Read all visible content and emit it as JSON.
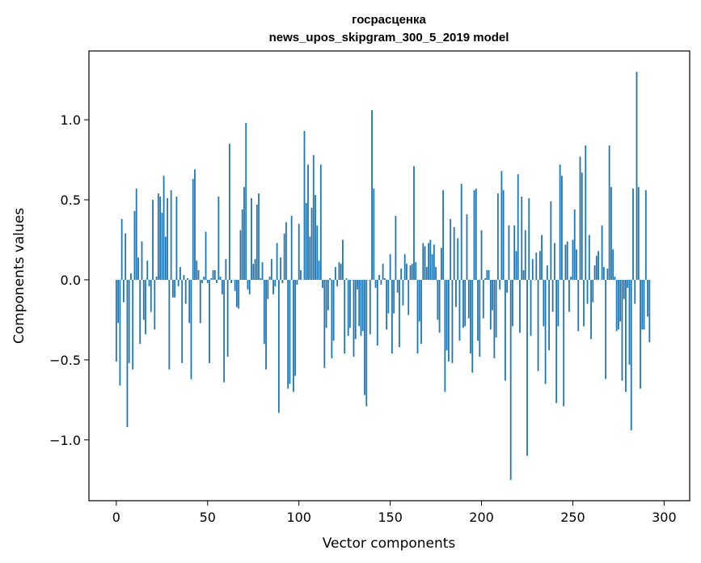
{
  "chart_data": {
    "type": "bar",
    "title": "госрасценка",
    "subtitle": "news_upos_skipgram_300_5_2019 model",
    "xlabel": "Vector components",
    "ylabel": "Components values",
    "xlim": [
      -15,
      314
    ],
    "ylim": [
      -1.38,
      1.43
    ],
    "xticks": [
      0,
      50,
      100,
      150,
      200,
      250,
      300
    ],
    "yticks": [
      -1.0,
      -0.5,
      0.0,
      0.5,
      1.0
    ],
    "ytick_labels": [
      "−1.0",
      "−0.5",
      "0.0",
      "0.5",
      "1.0"
    ],
    "grid": false,
    "color": "#1f77b4",
    "values": [
      -0.51,
      -0.27,
      -0.66,
      0.38,
      -0.14,
      0.29,
      -0.92,
      -0.52,
      0.04,
      -0.56,
      0.43,
      0.57,
      0.14,
      -0.4,
      0.24,
      -0.25,
      -0.34,
      0.12,
      -0.04,
      -0.2,
      0.5,
      -0.31,
      0.02,
      0.54,
      0.52,
      0.42,
      0.65,
      0.27,
      0.51,
      -0.56,
      0.56,
      -0.11,
      -0.11,
      0.52,
      -0.04,
      0.08,
      -0.52,
      0.03,
      -0.15,
      0.01,
      -0.27,
      -0.62,
      0.63,
      0.69,
      0.12,
      0.06,
      -0.27,
      -0.02,
      0.02,
      0.3,
      -0.02,
      -0.52,
      0.01,
      0.06,
      0.06,
      -0.02,
      0.52,
      0.02,
      -0.09,
      -0.64,
      0.13,
      -0.48,
      0.85,
      -0.02,
      0.0,
      -0.07,
      -0.17,
      -0.18,
      0.31,
      0.44,
      0.58,
      0.98,
      -0.06,
      -0.09,
      0.51,
      0.1,
      0.13,
      0.47,
      0.54,
      0.01,
      0.11,
      -0.4,
      -0.56,
      -0.12,
      0.02,
      0.13,
      -0.09,
      -0.04,
      0.23,
      -0.83,
      0.14,
      -0.02,
      0.29,
      0.36,
      -0.68,
      -0.65,
      0.4,
      -0.7,
      -0.6,
      -0.03,
      0.35,
      0.06,
      0.0,
      0.93,
      0.48,
      0.72,
      0.27,
      0.45,
      0.78,
      0.53,
      0.34,
      0.12,
      0.72,
      -0.05,
      -0.55,
      -0.3,
      -0.19,
      0.01,
      -0.49,
      -0.38,
      0.08,
      -0.04,
      0.11,
      0.1,
      0.25,
      -0.46,
      0.01,
      -0.35,
      -0.3,
      0.0,
      -0.48,
      -0.37,
      -0.06,
      -0.29,
      -0.35,
      -0.32,
      -0.72,
      -0.79,
      0.0,
      -0.34,
      1.06,
      0.57,
      -0.05,
      -0.41,
      0.03,
      -0.03,
      0.1,
      0.01,
      -0.31,
      -0.21,
      0.16,
      -0.46,
      -0.21,
      0.4,
      -0.08,
      -0.42,
      0.07,
      -0.16,
      0.16,
      0.1,
      -0.22,
      0.09,
      0.1,
      0.71,
      0.11,
      -0.46,
      -0.26,
      -0.4,
      0.23,
      0.21,
      0.08,
      0.23,
      0.25,
      0.16,
      0.22,
      0.08,
      -0.25,
      -0.33,
      0.2,
      0.56,
      -0.7,
      -0.44,
      -0.51,
      0.38,
      -0.52,
      0.33,
      -0.17,
      0.26,
      -0.38,
      0.6,
      -0.3,
      -0.29,
      0.41,
      -0.24,
      -0.46,
      -0.58,
      0.56,
      0.57,
      -0.38,
      -0.48,
      0.31,
      -0.24,
      0.01,
      0.06,
      0.06,
      -0.31,
      -0.19,
      -0.49,
      -0.36,
      0.54,
      -0.06,
      0.68,
      0.56,
      -0.63,
      -0.08,
      0.34,
      -1.25,
      -0.29,
      0.34,
      0.18,
      0.66,
      -0.33,
      0.52,
      0.06,
      0.31,
      -1.1,
      0.51,
      -0.35,
      0.13,
      0.0,
      0.17,
      -0.57,
      0.18,
      0.28,
      -0.29,
      -0.65,
      0.09,
      -0.44,
      0.49,
      -0.2,
      0.23,
      -0.77,
      -0.29,
      0.72,
      0.65,
      -0.79,
      0.22,
      0.24,
      -0.2,
      0.02,
      0.25,
      0.44,
      0.19,
      -0.32,
      0.77,
      0.67,
      -0.29,
      0.84,
      -0.15,
      0.28,
      -0.37,
      -0.14,
      0.09,
      0.15,
      0.18,
      0.0,
      0.34,
      0.08,
      -0.62,
      0.07,
      0.84,
      0.58,
      0.19,
      0.02,
      -0.32,
      -0.31,
      -0.26,
      -0.63,
      -0.12,
      -0.7,
      -0.05,
      -0.53,
      -0.94,
      0.57,
      -0.15,
      1.3,
      0.58,
      -0.68,
      -0.31,
      -0.31,
      0.56,
      -0.23,
      -0.39
    ]
  }
}
